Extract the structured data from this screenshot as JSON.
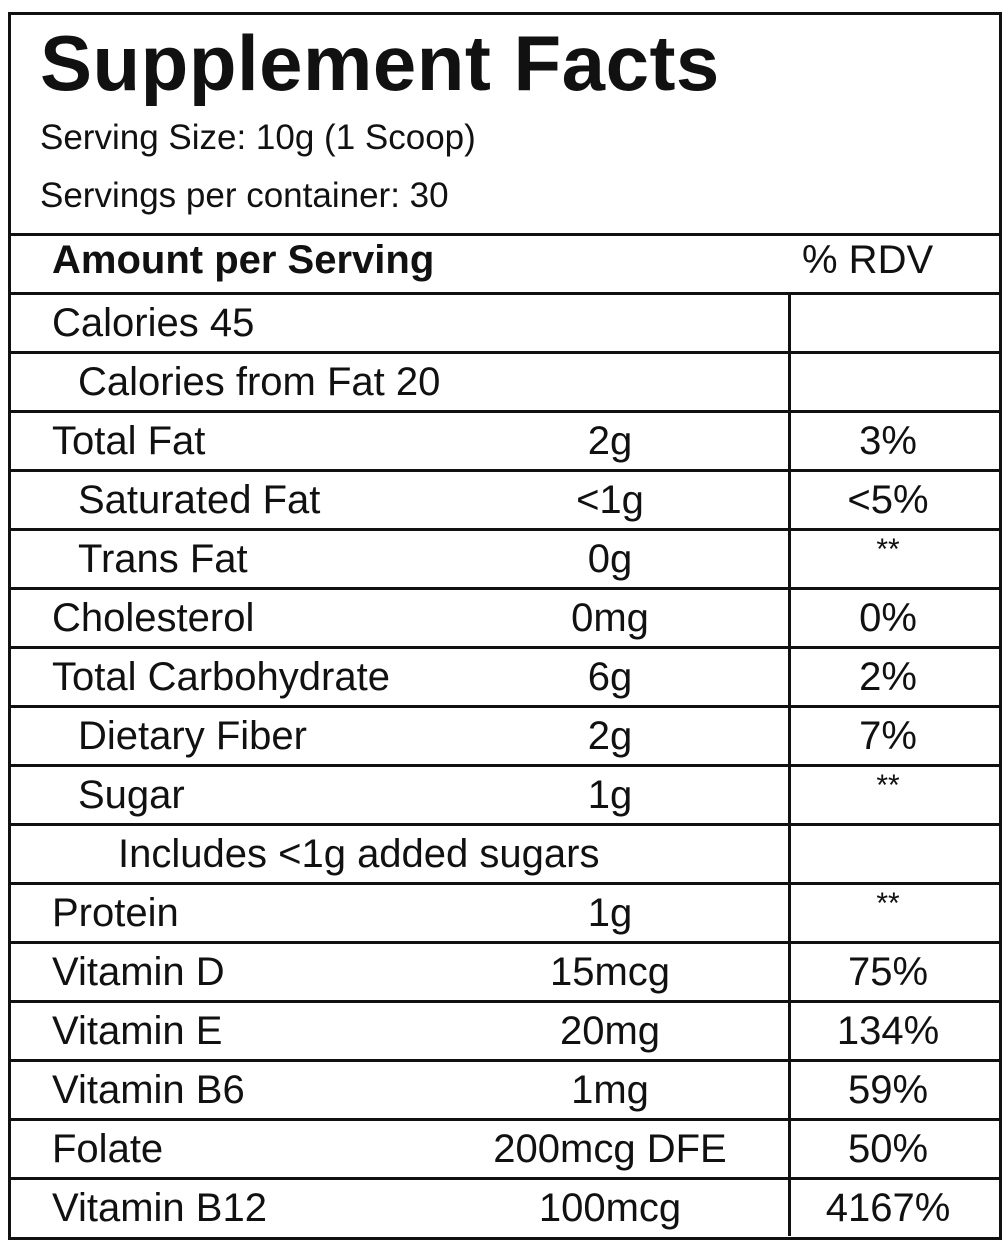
{
  "title": "Supplement Facts",
  "serving_size": "Serving Size: 10g (1 Scoop)",
  "servings_per_container": "Servings per container: 30",
  "header": {
    "amount": "Amount per Serving",
    "rdv": "% RDV"
  },
  "rows": [
    {
      "name": "Calories 45",
      "amount": "",
      "rdv": "",
      "indent": 0
    },
    {
      "name": "Calories from Fat 20",
      "amount": "",
      "rdv": "",
      "indent": 1
    },
    {
      "name": "Total Fat",
      "amount": "2g",
      "rdv": "3%",
      "indent": 0
    },
    {
      "name": "Saturated Fat",
      "amount": "<1g",
      "rdv": "<5%",
      "indent": 1
    },
    {
      "name": "Trans Fat",
      "amount": "0g",
      "rdv": "**",
      "indent": 1
    },
    {
      "name": "Cholesterol",
      "amount": "0mg",
      "rdv": "0%",
      "indent": 0
    },
    {
      "name": "Total Carbohydrate",
      "amount": "6g",
      "rdv": "2%",
      "indent": 0
    },
    {
      "name": "Dietary Fiber",
      "amount": "2g",
      "rdv": "7%",
      "indent": 1
    },
    {
      "name": "Sugar",
      "amount": "1g",
      "rdv": "**",
      "indent": 1
    },
    {
      "name": "Includes <1g added sugars",
      "amount": "",
      "rdv": "",
      "indent": 2
    },
    {
      "name": "Protein",
      "amount": "1g",
      "rdv": "**",
      "indent": 0
    },
    {
      "name": "Vitamin D",
      "amount": "15mcg",
      "rdv": "75%",
      "indent": 0
    },
    {
      "name": "Vitamin E",
      "amount": "20mg",
      "rdv": "134%",
      "indent": 0
    },
    {
      "name": "Vitamin B6",
      "amount": "1mg",
      "rdv": "59%",
      "indent": 0
    },
    {
      "name": "Folate",
      "amount": "200mcg DFE",
      "rdv": "50%",
      "indent": 0
    },
    {
      "name": "Vitamin B12",
      "amount": "100mcg",
      "rdv": "4167%",
      "indent": 0
    }
  ]
}
